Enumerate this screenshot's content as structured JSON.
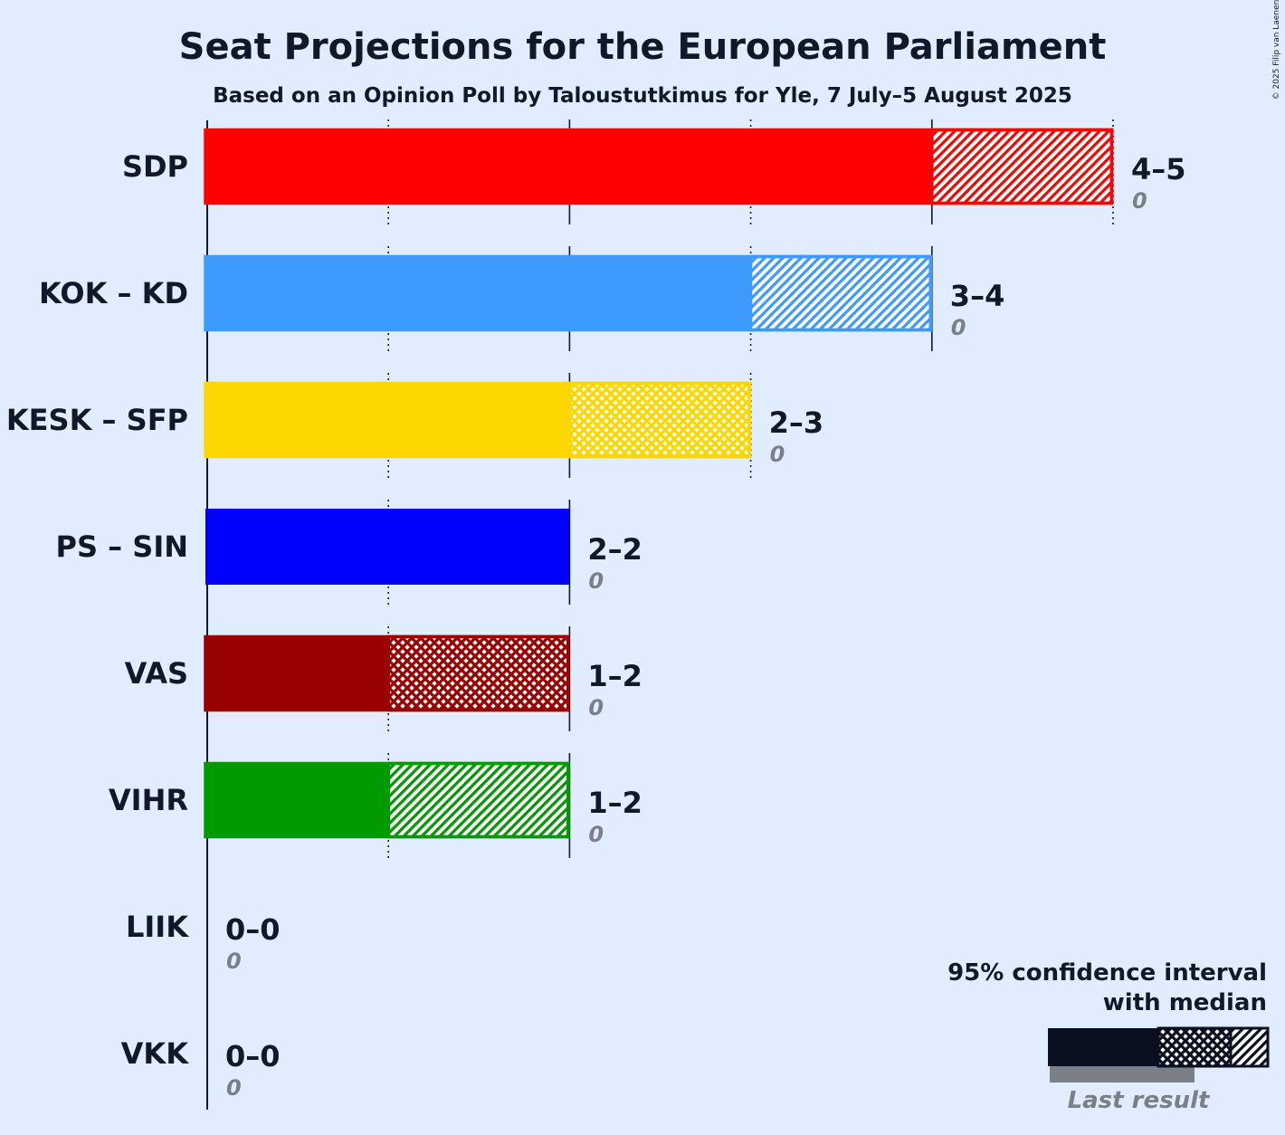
{
  "title": "Seat Projections for the European Parliament",
  "subtitle": "Based on an Opinion Poll by Taloustutkimus for Yle, 7 July–5 August 2025",
  "copyright": "© 2025 Filip van Laenen",
  "legend": {
    "title_line1": "95% confidence interval",
    "title_line2": "with median",
    "last_result": "Last result"
  },
  "chart_data": {
    "type": "bar",
    "orientation": "horizontal",
    "title": "Seat Projections for the European Parliament",
    "subtitle": "Based on an Opinion Poll by Taloustutkimus for Yle, 7 July–5 August 2025",
    "xlim": [
      0,
      5
    ],
    "categories": [
      "SDP",
      "KOK – KD",
      "KESK – SFP",
      "PS – SIN",
      "VAS",
      "VIHR",
      "LIIK",
      "VKK"
    ],
    "parties": [
      {
        "name": "SDP",
        "color": "#ff0000",
        "low": 4,
        "median": 4,
        "high": 5,
        "range": "4–5",
        "last": "0",
        "hatch": "single"
      },
      {
        "name": "KOK – KD",
        "color": "#3d9bff",
        "low": 3,
        "median": 3,
        "high": 4,
        "range": "3–4",
        "last": "0",
        "hatch": "single"
      },
      {
        "name": "KESK – SFP",
        "color": "#ffd700",
        "low": 2,
        "median": 3,
        "high": 3,
        "range": "2–3",
        "last": "0",
        "hatch": "cross"
      },
      {
        "name": "PS – SIN",
        "color": "#0000ff",
        "low": 2,
        "median": 2,
        "high": 2,
        "range": "2–2",
        "last": "0",
        "hatch": "none"
      },
      {
        "name": "VAS",
        "color": "#990000",
        "low": 1,
        "median": 2,
        "high": 2,
        "range": "1–2",
        "last": "0",
        "hatch": "cross"
      },
      {
        "name": "VIHR",
        "color": "#009900",
        "low": 1,
        "median": 1,
        "high": 2,
        "range": "1–2",
        "last": "0",
        "hatch": "single"
      },
      {
        "name": "LIIK",
        "color": "#111827",
        "low": 0,
        "median": 0,
        "high": 0,
        "range": "0–0",
        "last": "0",
        "hatch": "none"
      },
      {
        "name": "VKK",
        "color": "#111827",
        "low": 0,
        "median": 0,
        "high": 0,
        "range": "0–0",
        "last": "0",
        "hatch": "none"
      }
    ]
  }
}
